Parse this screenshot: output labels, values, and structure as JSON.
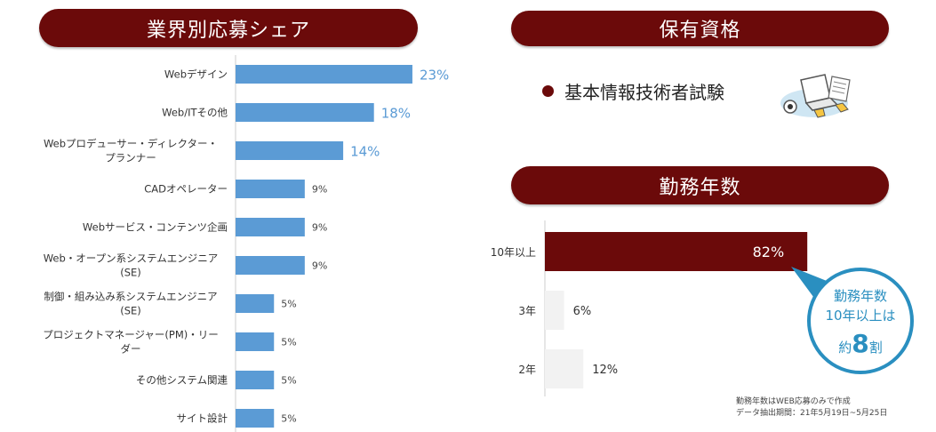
{
  "headers": {
    "share": "業界別応募シェア",
    "qualification": "保有資格",
    "tenure": "勤務年数"
  },
  "qualification": {
    "item": "基本情報技術者試験"
  },
  "callout": {
    "line1": "勤務年数",
    "line2": "10年以上は",
    "prefix": "約",
    "number": "8",
    "suffix": "割"
  },
  "note": {
    "line1": "勤務年数はWEB応募のみで作成",
    "line2": "データ抽出期間：21年5月19日~5月25日"
  },
  "colors": {
    "header": "#6b0a0a",
    "bar_blue": "#5b9bd5",
    "bar_dark": "#6b0a0a",
    "bar_gray": "#f2f2f2",
    "callout": "#2a8fc0"
  },
  "chart_data": [
    {
      "type": "bar",
      "orientation": "horizontal",
      "title": "業界別応募シェア",
      "categories": [
        [
          "Webデザイン"
        ],
        [
          "Web/ITその他"
        ],
        [
          "Webプロデューサー・ディレクター・",
          "プランナー"
        ],
        [
          "CADオペレーター"
        ],
        [
          "Webサービス・コンテンツ企画"
        ],
        [
          "Web・オープン系システムエンジニア",
          "(SE)"
        ],
        [
          "制御・組み込み系システムエンジニア",
          "(SE)"
        ],
        [
          "プロジェクトマネージャー(PM)・リー",
          "ダー"
        ],
        [
          "その他システム関連"
        ],
        [
          "サイト設計"
        ]
      ],
      "values": [
        23,
        18,
        14,
        9,
        9,
        9,
        5,
        5,
        5,
        5
      ],
      "value_labels": [
        "23%",
        "18%",
        "14%",
        "9%",
        "9%",
        "9%",
        "5%",
        "5%",
        "5%",
        "5%"
      ],
      "unit": "%"
    },
    {
      "type": "bar",
      "orientation": "horizontal",
      "title": "勤務年数",
      "categories": [
        "10年以上",
        "3年",
        "2年"
      ],
      "values": [
        82,
        6,
        12
      ],
      "value_labels": [
        "82%",
        "6%",
        "12%"
      ],
      "unit": "%"
    }
  ]
}
